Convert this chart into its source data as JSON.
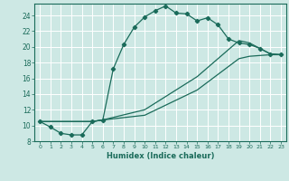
{
  "xlabel": "Humidex (Indice chaleur)",
  "bg_color": "#cde8e4",
  "line_color": "#1a6b5a",
  "xlim": [
    -0.5,
    23.5
  ],
  "ylim": [
    8,
    25.5
  ],
  "xticks": [
    0,
    1,
    2,
    3,
    4,
    5,
    6,
    7,
    8,
    9,
    10,
    11,
    12,
    13,
    14,
    15,
    16,
    17,
    18,
    19,
    20,
    21,
    22,
    23
  ],
  "yticks": [
    8,
    10,
    12,
    14,
    16,
    18,
    20,
    22,
    24
  ],
  "line1_x": [
    0,
    1,
    2,
    3,
    4,
    5,
    6,
    7,
    8,
    9,
    10,
    11,
    12,
    13,
    14,
    15,
    16,
    17,
    18,
    19,
    20,
    21,
    22,
    23
  ],
  "line1_y": [
    10.5,
    9.8,
    9.0,
    8.8,
    8.8,
    10.5,
    10.7,
    17.2,
    20.3,
    22.5,
    23.8,
    24.6,
    25.2,
    24.3,
    24.2,
    23.3,
    23.7,
    22.8,
    21.0,
    20.5,
    20.3,
    19.8,
    19.1,
    19.0
  ],
  "line2_x": [
    0,
    5,
    6,
    10,
    15,
    19,
    20,
    21,
    22,
    23
  ],
  "line2_y": [
    10.5,
    10.5,
    10.7,
    11.3,
    14.5,
    18.5,
    18.8,
    18.9,
    19.0,
    19.0
  ],
  "line3_x": [
    0,
    5,
    6,
    10,
    15,
    19,
    20,
    21,
    22,
    23
  ],
  "line3_y": [
    10.5,
    10.5,
    10.7,
    12.0,
    16.2,
    20.8,
    20.5,
    19.8,
    19.1,
    19.0
  ]
}
